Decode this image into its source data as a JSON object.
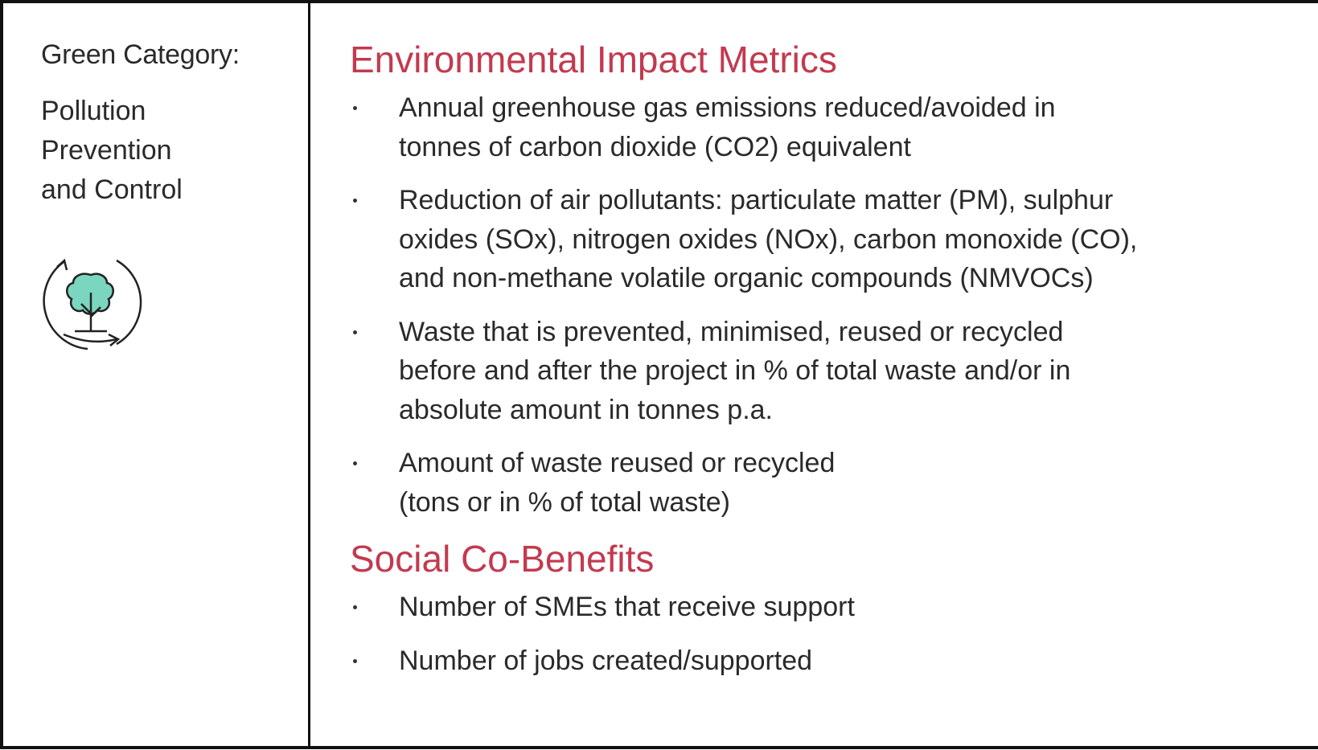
{
  "left": {
    "label": "Green Category:",
    "category": "Pollution Prevention and Control"
  },
  "sections": [
    {
      "heading": "Environmental Impact Metrics",
      "bullets": [
        [
          "Annual greenhouse gas emissions reduced/avoided in",
          "tonnes of carbon dioxide (CO2) equivalent"
        ],
        [
          "Reduction of air pollutants: particulate matter (PM), sulphur",
          "oxides (SOx), nitrogen oxides (NOx), carbon monoxide (CO),",
          "and non-methane volatile organic compounds (NMVOCs)"
        ],
        [
          "Waste that is prevented, minimised, reused or recycled",
          "before and after the project in % of total waste and/or in",
          "absolute amount in tonnes p.a."
        ],
        [
          "Amount of waste reused or recycled",
          "(tons or in % of total waste)"
        ]
      ]
    },
    {
      "heading": "Social Co-Benefits",
      "bullets": [
        [
          "Number of SMEs that receive support"
        ],
        [
          "Number of jobs created/supported"
        ]
      ]
    }
  ]
}
